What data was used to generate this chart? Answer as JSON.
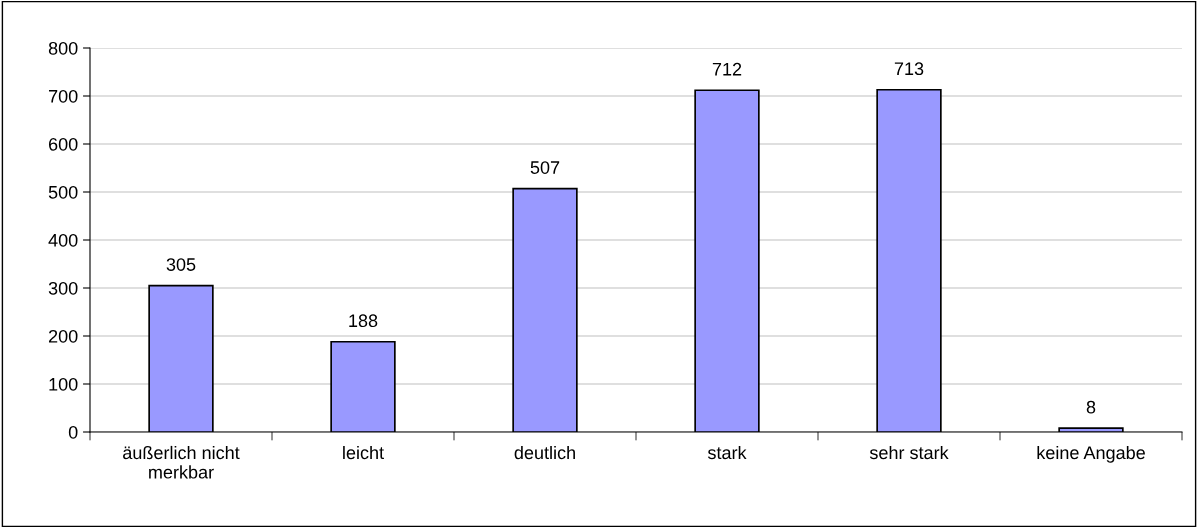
{
  "chart_data": {
    "type": "bar",
    "categories": [
      "äußerlich nicht\nmerkbar",
      "leicht",
      "deutlich",
      "stark",
      "sehr stark",
      "keine Angabe"
    ],
    "values": [
      305,
      188,
      507,
      712,
      713,
      8
    ],
    "color": "#9999ff",
    "ylim": [
      0,
      800
    ],
    "yticks": [
      0,
      100,
      200,
      300,
      400,
      500,
      600,
      700,
      800
    ],
    "grid": "y",
    "data_labels": true
  }
}
